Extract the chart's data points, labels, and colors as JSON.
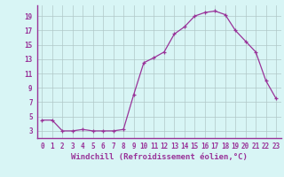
{
  "x": [
    0,
    1,
    2,
    3,
    4,
    5,
    6,
    7,
    8,
    9,
    10,
    11,
    12,
    13,
    14,
    15,
    16,
    17,
    18,
    19,
    20,
    21,
    22,
    23
  ],
  "y": [
    4.5,
    4.5,
    3.0,
    3.0,
    3.2,
    3.0,
    3.0,
    3.0,
    3.2,
    8.0,
    12.5,
    13.2,
    14.0,
    16.5,
    17.5,
    19.0,
    19.5,
    19.7,
    19.2,
    17.0,
    15.5,
    14.0,
    10.0,
    7.5
  ],
  "line_color": "#993399",
  "marker": "+",
  "markersize": 3,
  "linewidth": 0.9,
  "background_color": "#d8f5f5",
  "grid_color": "#b0c8c8",
  "xlabel": "Windchill (Refroidissement éolien,°C)",
  "xlabel_fontsize": 6.5,
  "tick_color": "#993399",
  "tick_fontsize": 5.5,
  "xlim": [
    -0.5,
    23.5
  ],
  "ylim": [
    2,
    20.5
  ],
  "yticks": [
    3,
    5,
    7,
    9,
    11,
    13,
    15,
    17,
    19
  ],
  "xticks": [
    0,
    1,
    2,
    3,
    4,
    5,
    6,
    7,
    8,
    9,
    10,
    11,
    12,
    13,
    14,
    15,
    16,
    17,
    18,
    19,
    20,
    21,
    22,
    23
  ],
  "spine_color": "#993399",
  "bottom_line_color": "#993399"
}
